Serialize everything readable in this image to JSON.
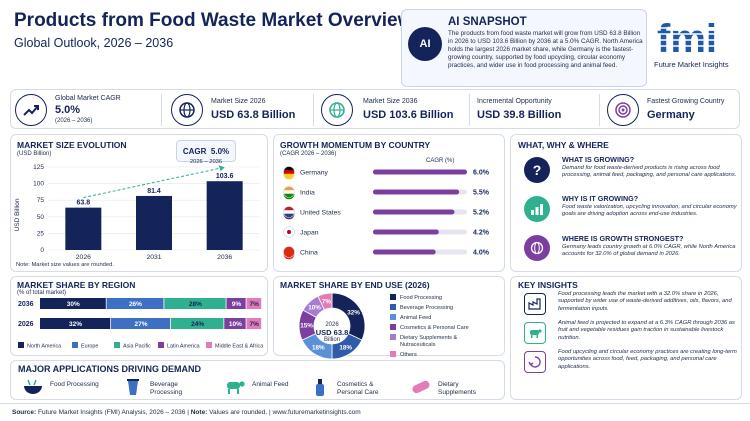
{
  "header": {
    "title": "Products from Food Waste Market Overview",
    "subtitle": "Global Outlook, 2026 – 2036"
  },
  "snapshot": {
    "icon": "ai-chip-icon",
    "title": "AI SNAPSHOT",
    "text": "The products from food waste market will grow from USD 63.8 Billion in 2026 to USD 103.6 Billion by 2036 at a 5.0% CAGR. North America holds the largest 2026 market share, while Germany is the fastest-growing country, supported by food upcycling, circular economy practices, and wider use in food processing and animal feed."
  },
  "logo": {
    "mark": "fmi",
    "sub": "Future Market Insights"
  },
  "kpis": [
    {
      "icon": "trend-up-icon",
      "label": "Global Market CAGR",
      "value": "5.0%",
      "note": "(2026 – 2036)"
    },
    {
      "icon": "globe-icon",
      "label": "Market Size 2026",
      "value": "USD 63.8 Billion"
    },
    {
      "icon": "globe-icon",
      "label": "Market Size 2036",
      "value": "USD 103.6 Billion"
    },
    {
      "icon": "growth-chart-icon",
      "label": "Incremental Opportunity",
      "value": "USD 39.8 Billion"
    },
    {
      "icon": "target-icon",
      "label": "Fastest Growing Country",
      "value": "Germany"
    }
  ],
  "evolution": {
    "heading": "MARKET SIZE EVOLUTION",
    "sub": "(USD Billion)",
    "cagr_label": "CAGR",
    "cagr_value": "5.0%",
    "cagr_period": "2026 – 2036",
    "note": "Note: Market size values are rounded.",
    "yticks": [
      "125",
      "100",
      "75",
      "50",
      "25",
      "0"
    ],
    "bar_color": "#14245a"
  },
  "momentum": {
    "heading": "GROWTH MOMENTUM BY COUNTRY",
    "sub": "(CAGR 2026 – 2036)",
    "col": "CAGR (%)",
    "bar_color": "#7b3fa0"
  },
  "what_why": {
    "heading": "WHAT, WHY & WHERE",
    "items": [
      {
        "icon": "question-icon",
        "q": "WHAT IS GROWING?",
        "a": "Demand for food waste-derived products is rising across food processing, animal feed, packaging, and personal care applications."
      },
      {
        "icon": "growth-chart-icon",
        "q": "WHY IS IT GROWING?",
        "a": "Food waste valorization, upcycling innovation, and circular economy goals are driving adoption across end-use industries."
      },
      {
        "icon": "globe-pin-icon",
        "q": "WHERE IS GROWTH STRONGEST?",
        "a": "Germany leads country growth at 6.0% CAGR, while North America accounts for 32.0% of global demand in 2026."
      }
    ]
  },
  "region": {
    "heading": "MARKET SHARE BY REGION",
    "sub": "(% of total market)"
  },
  "enduse": {
    "heading": "MARKET SHARE BY END USE (2026)",
    "center_year": "2026",
    "center_value": "USD 63.8",
    "center_unit": "Billion"
  },
  "insights": {
    "heading": "KEY INSIGHTS",
    "items": [
      {
        "icon": "factory-icon",
        "text": "Food processing leads the market with a 32.0% share in 2026, supported by wider use of waste-derived additives, oils, flavors, and fermentation inputs."
      },
      {
        "icon": "cow-icon",
        "text": "Animal feed is projected to expand at a 6.3% CAGR through 2036 as fruit and vegetable residues gain traction in sustainable livestock nutrition."
      },
      {
        "icon": "recycle-icon",
        "text": "Food upcycling and circular economy practices are creating long-term opportunities across food, feed, packaging, and personal care applications."
      }
    ]
  },
  "applications": {
    "heading": "MAJOR APPLICATIONS DRIVING DEMAND",
    "items": [
      {
        "icon": "food-bowl-icon",
        "label": "Food Processing"
      },
      {
        "icon": "beverage-icon",
        "label": "Beverage Processing"
      },
      {
        "icon": "cow-icon",
        "label": "Animal Feed"
      },
      {
        "icon": "cosmetics-icon",
        "label": "Cosmetics & Personal Care"
      },
      {
        "icon": "capsule-icon",
        "label": "Dietary Supplements"
      }
    ]
  },
  "footer": {
    "source_label": "Source:",
    "source": "Future Market Insights (FMI) Analysis, 2026 – 2036",
    "note_label": "Note:",
    "note": "Values are rounded.",
    "url": "www.futuremarketinsights.com"
  },
  "chart_data": [
    {
      "type": "bar",
      "title": "MARKET SIZE EVOLUTION",
      "subtitle": "(USD Billion)",
      "ylabel": "USD Billion",
      "categories": [
        "2026",
        "2031",
        "2036"
      ],
      "values": [
        63.8,
        81.4,
        103.6
      ],
      "ylim": [
        0,
        125
      ],
      "annotation": "CAGR 5.0% 2026 – 2036",
      "grid": true
    },
    {
      "type": "bar",
      "orientation": "horizontal",
      "title": "GROWTH MOMENTUM BY COUNTRY",
      "subtitle": "(CAGR 2026 – 2036)",
      "categories": [
        "Germany",
        "India",
        "United States",
        "Japan",
        "China"
      ],
      "values": [
        6.0,
        5.5,
        5.2,
        4.2,
        4.0
      ],
      "value_labels": [
        "6.0%",
        "5.5%",
        "5.2%",
        "4.2%",
        "4.0%"
      ],
      "column_label": "CAGR (%)"
    },
    {
      "type": "bar",
      "orientation": "horizontal",
      "stacked": true,
      "title": "MARKET SHARE BY REGION",
      "subtitle": "(% of total market)",
      "categories": [
        "2036",
        "2026"
      ],
      "series": [
        {
          "name": "North America",
          "values": [
            30,
            32
          ],
          "color": "#14245a"
        },
        {
          "name": "Europe",
          "values": [
            26,
            27
          ],
          "color": "#3d6fc4"
        },
        {
          "name": "Asia Pacific",
          "values": [
            28,
            24
          ],
          "color": "#2fb08e"
        },
        {
          "name": "Latin America",
          "values": [
            9,
            10
          ],
          "color": "#7b3fa0"
        },
        {
          "name": "Middle East & Africa",
          "values": [
            7,
            7
          ],
          "color": "#e27bb8"
        }
      ],
      "legend": "bottom"
    },
    {
      "type": "pie",
      "donut": true,
      "title": "MARKET SHARE BY END USE (2026)",
      "labels": [
        "Food Processing",
        "Beverage Processing",
        "Animal Feed",
        "Cosmetics & Personal Care",
        "Dietary Supplements & Nutraceuticals",
        "Others"
      ],
      "values": [
        32,
        18,
        18,
        15,
        10,
        7
      ],
      "colors": [
        "#14245a",
        "#2f5ba8",
        "#5b8fd6",
        "#7b3fa0",
        "#a77bd0",
        "#e27bb8"
      ],
      "legend": "right"
    }
  ]
}
